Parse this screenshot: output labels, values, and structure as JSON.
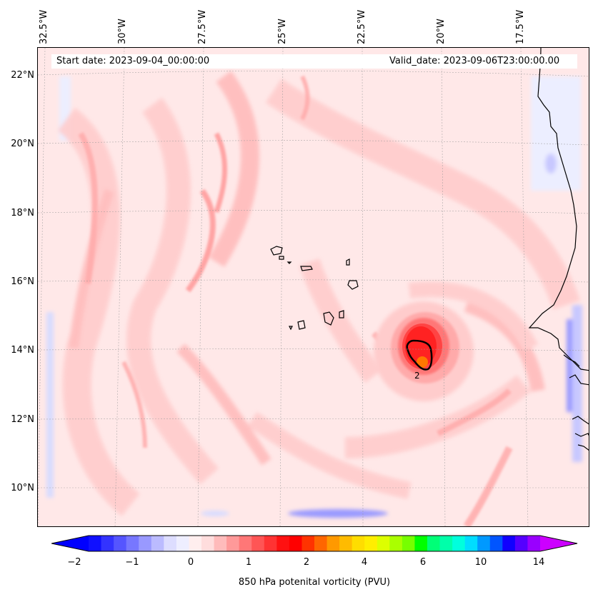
{
  "map": {
    "header": {
      "start_date": "Start date: 2023-09-04_00:00:00",
      "valid_date": "Valid_date: 2023-09-06T23:00:00.00"
    },
    "latitude_labels": [
      "22°N",
      "20°N",
      "18°N",
      "16°N",
      "14°N",
      "12°N",
      "10°N"
    ],
    "longitude_labels": [
      "32.5°W",
      "30°W",
      "27.5°W",
      "25°W",
      "22.5°W",
      "20°W",
      "17.5°W"
    ],
    "contour_label": "2",
    "colorbar": {
      "title": "850 hPa potenital vorticity (PVU)",
      "tick_labels": [
        "−2",
        "−1",
        "0",
        "1",
        "2",
        "4",
        "6",
        "10",
        "14"
      ],
      "colors": [
        "#1010ff",
        "#3333ff",
        "#5555ff",
        "#7777ff",
        "#9999ff",
        "#bbbbff",
        "#ddddff",
        "#eeeeff",
        "#ffeeee",
        "#ffdddd",
        "#ffbbbb",
        "#ff9999",
        "#ff7777",
        "#ff5555",
        "#ff3333",
        "#ff1111",
        "#ff0000",
        "#ff3300",
        "#ff6600",
        "#ff9900",
        "#ffbb00",
        "#ffdd00",
        "#ffee00",
        "#ddff00",
        "#aaff00",
        "#77ff00",
        "#00ff00",
        "#00ff77",
        "#00ffaa",
        "#00ffdd",
        "#00ddff",
        "#0099ff",
        "#0055ff",
        "#1100ff",
        "#5500ff",
        "#9900ff"
      ],
      "extend_low_color": "#0000ff",
      "extend_high_color": "#cc00ff"
    }
  }
}
